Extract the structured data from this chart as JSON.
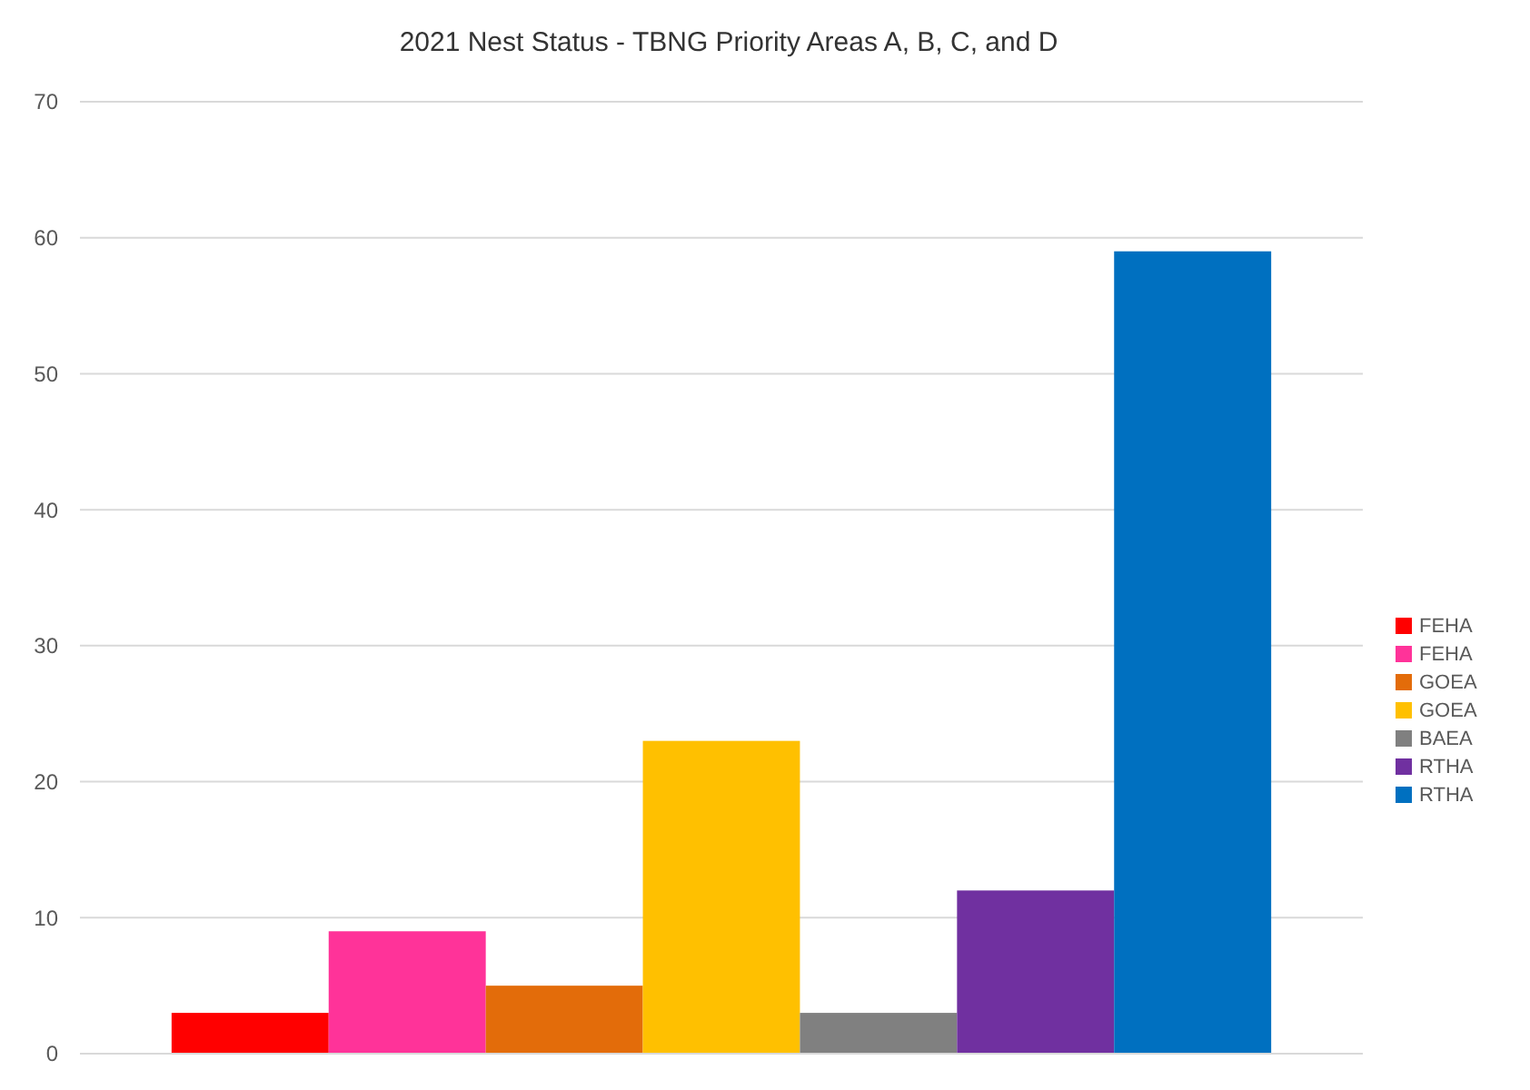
{
  "chart_data": {
    "type": "bar",
    "title": "2021 Nest Status - TBNG Priority Areas A, B, C, and D",
    "categories": [
      null
    ],
    "series": [
      {
        "name": "FEHA",
        "color": "#ff0000",
        "values": [
          3
        ]
      },
      {
        "name": "FEHA",
        "color": "#ff3399",
        "values": [
          9
        ]
      },
      {
        "name": "GOEA",
        "color": "#e36c0a",
        "values": [
          5
        ]
      },
      {
        "name": "GOEA",
        "color": "#ffc000",
        "values": [
          23
        ]
      },
      {
        "name": "BAEA",
        "color": "#808080",
        "values": [
          3
        ]
      },
      {
        "name": "RTHA",
        "color": "#7030a0",
        "values": [
          12
        ]
      },
      {
        "name": "RTHA",
        "color": "#0070c0",
        "values": [
          59
        ]
      }
    ],
    "ylim": [
      0,
      70
    ],
    "yticks": [
      0,
      10,
      20,
      30,
      40,
      50,
      60,
      70
    ],
    "grid": "y",
    "legend": "right"
  }
}
